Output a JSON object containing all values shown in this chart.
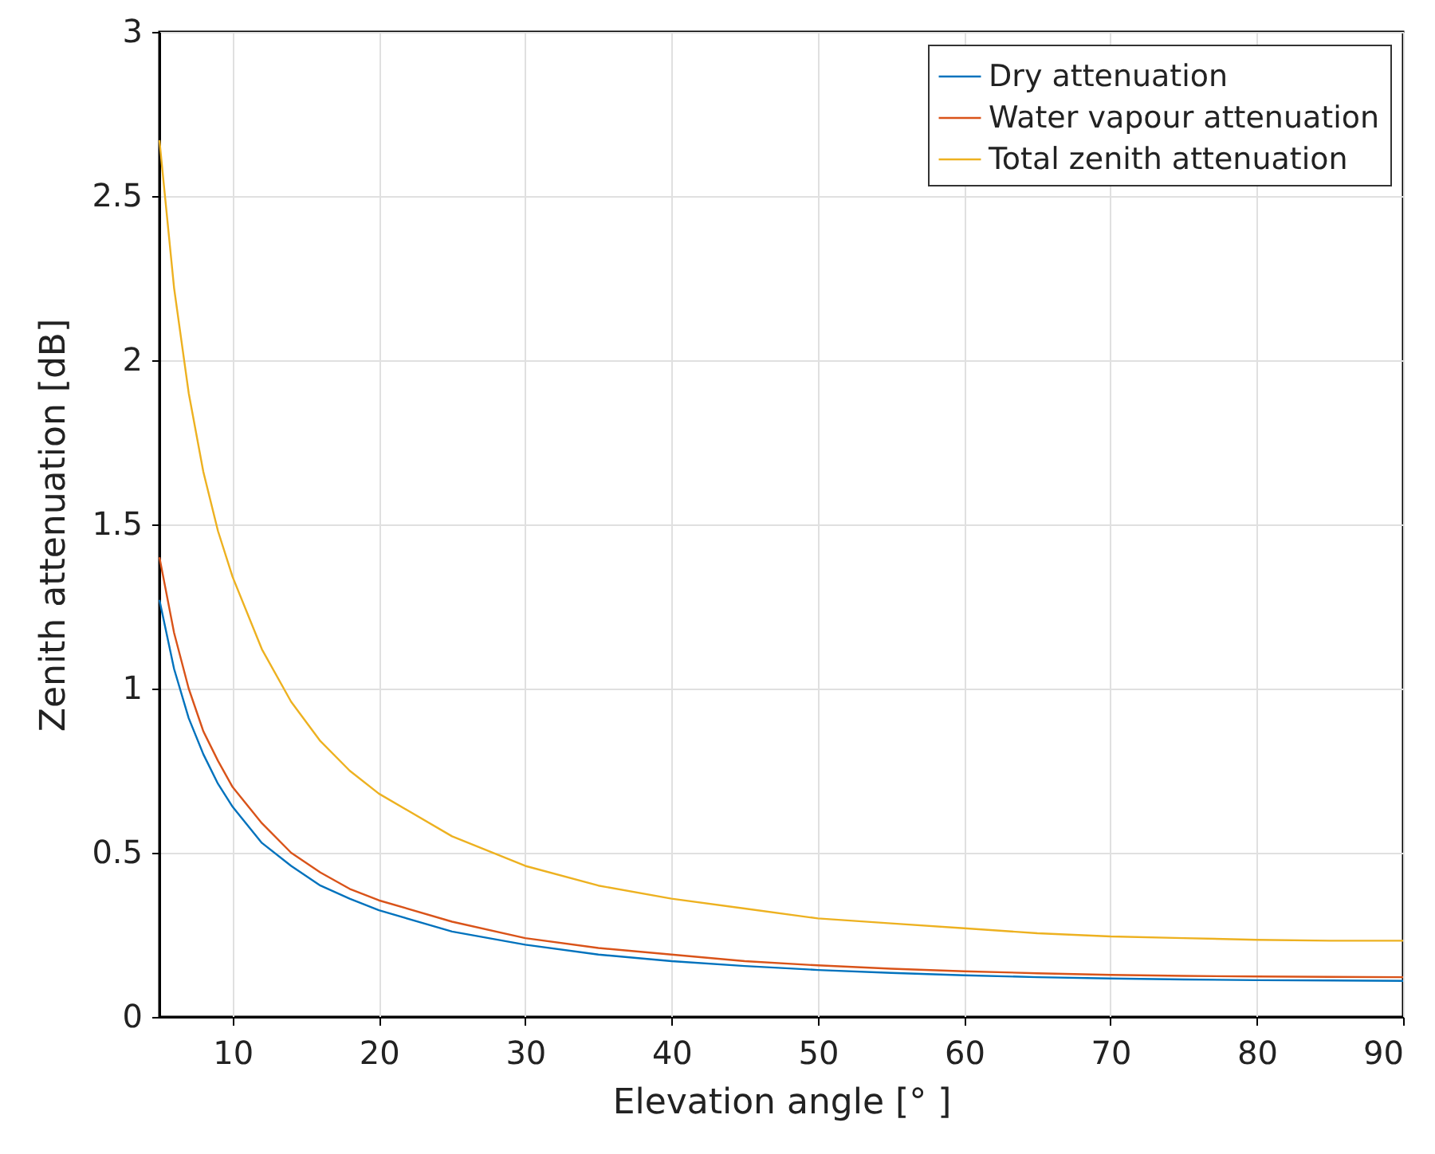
{
  "chart_data": {
    "type": "line",
    "xlabel": "Elevation angle [°  ]",
    "ylabel": "Zenith attenuation [dB]",
    "x": [
      5,
      6,
      7,
      8,
      9,
      10,
      12,
      14,
      16,
      18,
      20,
      25,
      30,
      35,
      40,
      45,
      50,
      55,
      60,
      65,
      70,
      75,
      80,
      85,
      90
    ],
    "series": [
      {
        "name": "Dry attenuation",
        "color": "#0072bd",
        "values": [
          1.27,
          1.06,
          0.91,
          0.8,
          0.71,
          0.64,
          0.53,
          0.46,
          0.4,
          0.36,
          0.325,
          0.26,
          0.22,
          0.19,
          0.17,
          0.155,
          0.143,
          0.134,
          0.127,
          0.121,
          0.117,
          0.114,
          0.112,
          0.111,
          0.11
        ]
      },
      {
        "name": "Water vapour attenuation",
        "color": "#d95319",
        "values": [
          1.4,
          1.17,
          1.0,
          0.87,
          0.78,
          0.7,
          0.59,
          0.5,
          0.44,
          0.39,
          0.355,
          0.29,
          0.24,
          0.21,
          0.19,
          0.17,
          0.157,
          0.147,
          0.139,
          0.133,
          0.128,
          0.125,
          0.123,
          0.122,
          0.121
        ]
      },
      {
        "name": "Total zenith attenuation",
        "color": "#edb120",
        "values": [
          2.67,
          2.22,
          1.9,
          1.66,
          1.48,
          1.34,
          1.12,
          0.96,
          0.84,
          0.75,
          0.68,
          0.55,
          0.46,
          0.4,
          0.36,
          0.33,
          0.3,
          0.285,
          0.27,
          0.255,
          0.245,
          0.24,
          0.235,
          0.232,
          0.232
        ]
      }
    ],
    "xlim": [
      5,
      90
    ],
    "xticks": [
      10,
      20,
      30,
      40,
      50,
      60,
      70,
      80,
      90
    ],
    "ylim": [
      0,
      3
    ],
    "yticks": [
      0,
      0.5,
      1,
      1.5,
      2,
      2.5,
      3
    ],
    "grid": true,
    "legend": "top right",
    "marker": "none",
    "line_style": "solid"
  }
}
